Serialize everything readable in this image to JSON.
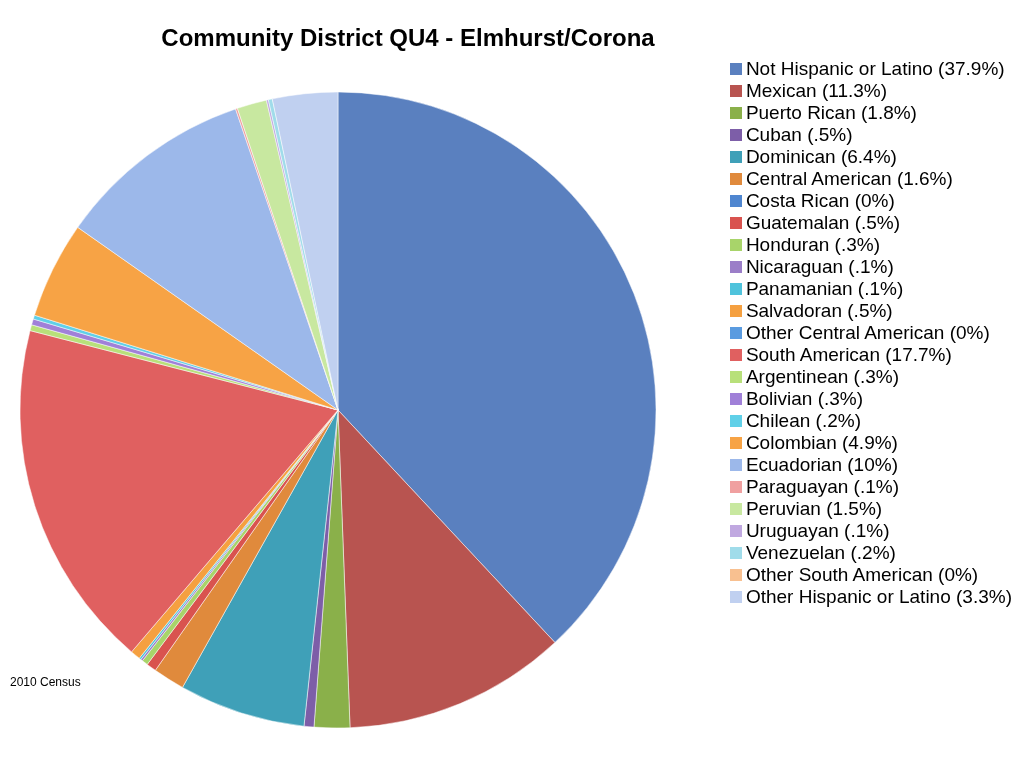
{
  "chart_data": {
    "type": "pie",
    "title": "Community District QU4 - Elmhurst/Corona",
    "categories": [
      "Not Hispanic or Latino (37.9%)",
      "Mexican (11.3%)",
      "Puerto Rican (1.8%)",
      "Cuban (.5%)",
      "Dominican (6.4%)",
      "Central American (1.6%)",
      "Costa Rican (0%)",
      "Guatemalan (.5%)",
      "Honduran (.3%)",
      "Nicaraguan (.1%)",
      "Panamanian (.1%)",
      "Salvadoran (.5%)",
      "Other Central American (0%)",
      "South American (17.7%)",
      "Argentinean (.3%)",
      "Bolivian (.3%)",
      "Chilean (.2%)",
      "Colombian (4.9%)",
      "Ecuadorian (10%)",
      "Paraguayan (.1%)",
      "Peruvian (1.5%)",
      "Uruguayan (.1%)",
      "Venezuelan (.2%)",
      "Other South American (0%)",
      "Other Hispanic or Latino (3.3%)"
    ],
    "values": [
      37.9,
      11.3,
      1.8,
      0.5,
      6.4,
      1.6,
      0,
      0.5,
      0.3,
      0.1,
      0.1,
      0.5,
      0,
      17.7,
      0.3,
      0.3,
      0.2,
      4.9,
      10,
      0.1,
      1.5,
      0.1,
      0.2,
      0,
      3.3
    ],
    "colors": [
      "#5a80bf",
      "#b85450",
      "#8ab04a",
      "#7d5ea8",
      "#3fa0b8",
      "#e08a3c",
      "#4f86d0",
      "#d9534f",
      "#a8d46a",
      "#9b7ec8",
      "#4fc3dc",
      "#f5a040",
      "#5a9be0",
      "#e06060",
      "#b8e07a",
      "#a080d8",
      "#60d0e8",
      "#f7a345",
      "#9cb8ea",
      "#f0a0a0",
      "#c8e8a0",
      "#c0a8e0",
      "#a0dcea",
      "#f8c090",
      "#c0d0f0"
    ],
    "legend": "right",
    "annotations": [
      "2010 Census"
    ]
  }
}
